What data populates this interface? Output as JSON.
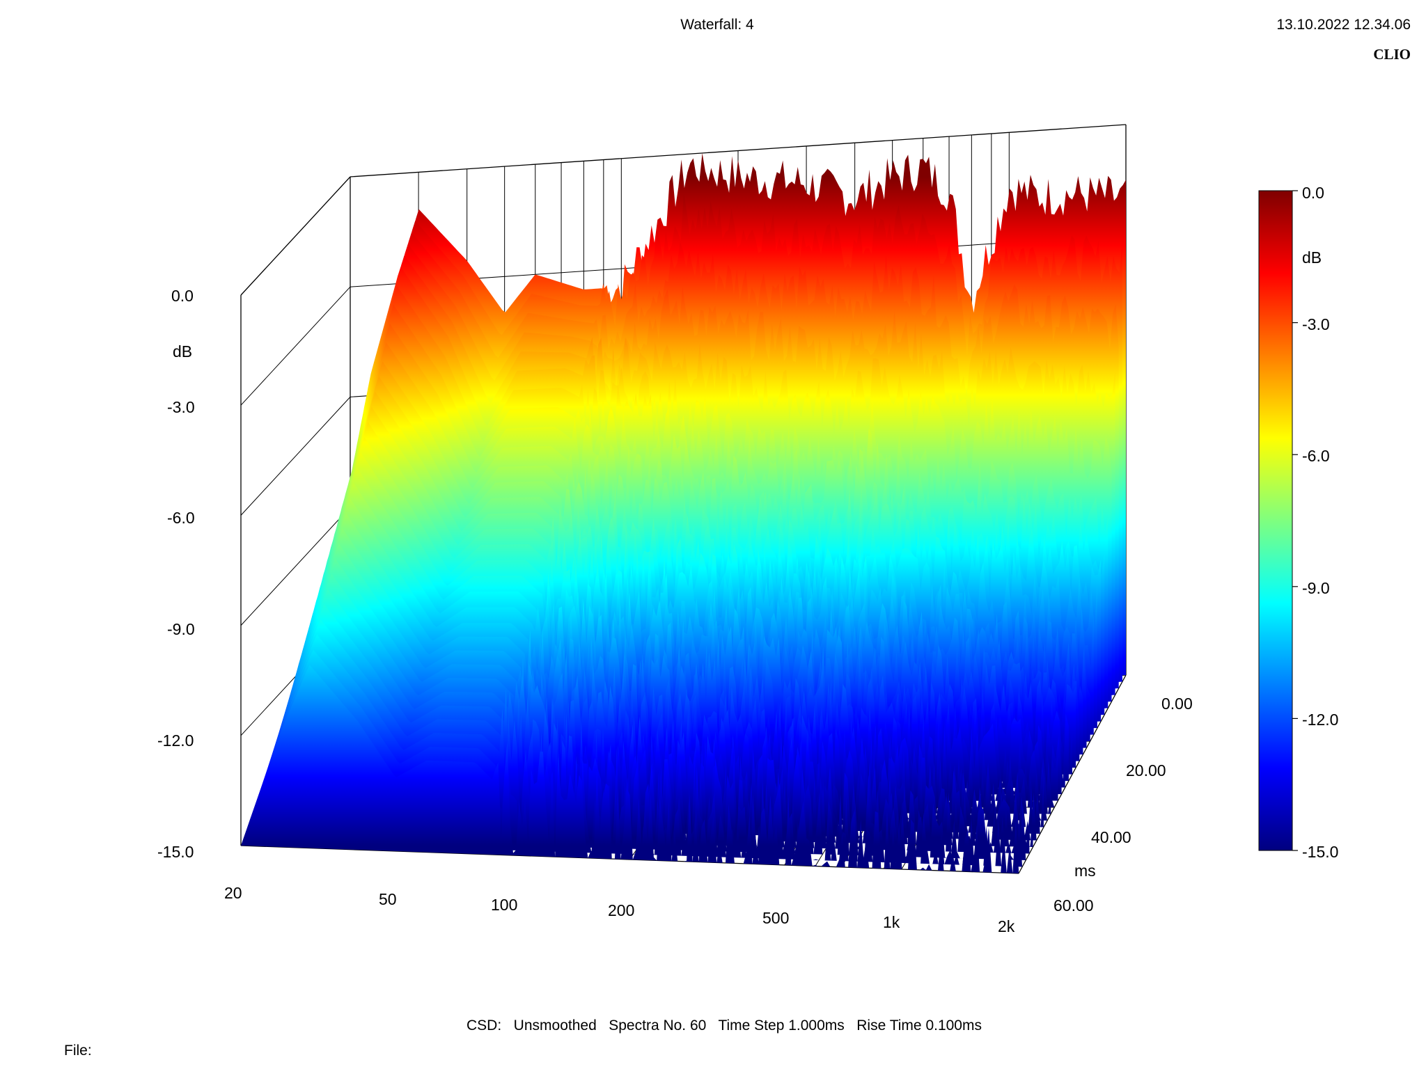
{
  "header": {
    "title": "Waterfall: 4",
    "timestamp": "13.10.2022 12.34.06",
    "brand": "CLIO"
  },
  "footer": {
    "info": "CSD:   Unsmoothed   Spectra No. 60   Time Step 1.000ms   Rise Time 0.100ms",
    "file_label": "File:"
  },
  "colors": {
    "colormap": [
      "#7f0000",
      "#ff0000",
      "#ff7f00",
      "#ffff00",
      "#7fff7f",
      "#00ffff",
      "#007fff",
      "#0000ff",
      "#00007f"
    ]
  },
  "chart_data": {
    "type": "waterfall",
    "title": "Waterfall: 4",
    "z_axis": {
      "label": "dB",
      "range": [
        -15.0,
        0.0
      ],
      "ticks": [
        "0.0",
        "-3.0",
        "-6.0",
        "-9.0",
        "-12.0",
        "-15.0"
      ]
    },
    "x_axis": {
      "label": "",
      "scale": "log",
      "range": [
        20,
        2000
      ],
      "ticks": [
        "20",
        "50",
        "100",
        "200",
        "500",
        "1k",
        "2k"
      ]
    },
    "y_axis": {
      "label": "ms",
      "range": [
        0,
        60
      ],
      "ticks": [
        "0.00",
        "20.00",
        "40.00",
        "60.00"
      ]
    },
    "colorbar": {
      "label": "dB",
      "range": [
        -15.0,
        0.0
      ],
      "ticks": [
        "0.0",
        "-3.0",
        "-6.0",
        "-9.0",
        "-12.0",
        "-15.0"
      ]
    },
    "spectra_count": 60,
    "time_step_ms": 1.0,
    "rise_time_ms": 0.1,
    "series": [
      {
        "time_ms": 0,
        "x": [
          20,
          25,
          30,
          40,
          50,
          60,
          80,
          100,
          150,
          200,
          300,
          400,
          500,
          600,
          700,
          800,
          1000,
          1200,
          1500,
          2000
        ],
        "values": [
          -9.0,
          -4.0,
          -1.0,
          -2.5,
          -4.0,
          -3.0,
          -3.5,
          -3.5,
          -0.3,
          -0.7,
          -1.0,
          -1.5,
          -1.0,
          -0.8,
          -1.5,
          -4.5,
          -1.5,
          -1.8,
          -1.8,
          -2.0
        ]
      },
      {
        "time_ms": 10,
        "x": [
          20,
          25,
          30,
          40,
          50,
          60,
          80,
          100,
          150,
          200,
          300,
          400,
          500,
          600,
          700,
          800,
          1000,
          1200,
          1500,
          2000
        ],
        "values": [
          -11.0,
          -5.0,
          -2.0,
          -4.0,
          -6.5,
          -5.0,
          -5.0,
          -5.5,
          -6.0,
          -7.0,
          -7.5,
          -8.0,
          -7.0,
          -8.0,
          -8.5,
          -9.0,
          -8.5,
          -9.0,
          -9.5,
          -10.0
        ]
      },
      {
        "time_ms": 20,
        "x": [
          20,
          25,
          30,
          40,
          50,
          60,
          80,
          100,
          150,
          200,
          300,
          400,
          500,
          600,
          700,
          800,
          1000,
          1200,
          1500,
          2000
        ],
        "values": [
          -12.5,
          -7.0,
          -4.0,
          -6.0,
          -8.0,
          -7.0,
          -7.0,
          -8.0,
          -9.0,
          -9.5,
          -10.0,
          -10.5,
          -10.0,
          -10.5,
          -11.0,
          -11.5,
          -11.5,
          -12.0,
          -12.5,
          -13.0
        ]
      },
      {
        "time_ms": 40,
        "x": [
          20,
          25,
          30,
          40,
          50,
          60,
          80,
          100,
          150,
          200,
          300,
          400,
          500,
          600,
          700,
          800,
          1000,
          1200,
          1500,
          2000
        ],
        "values": [
          -14.0,
          -9.5,
          -7.0,
          -9.0,
          -10.5,
          -10.0,
          -10.0,
          -11.0,
          -12.0,
          -12.5,
          -13.0,
          -13.5,
          -13.0,
          -13.5,
          -14.0,
          -14.0,
          -14.5,
          -14.5,
          -15.0,
          -15.0
        ]
      },
      {
        "time_ms": 60,
        "x": [
          20,
          25,
          30,
          40,
          50,
          60,
          80,
          100,
          150,
          200,
          300,
          400,
          500,
          600,
          700,
          800,
          1000,
          1200,
          1500,
          2000
        ],
        "values": [
          -15.0,
          -12.0,
          -10.0,
          -11.5,
          -13.0,
          -12.5,
          -12.5,
          -13.5,
          -14.0,
          -14.5,
          -14.5,
          -15.0,
          -14.5,
          -15.0,
          -15.0,
          -15.0,
          -15.0,
          -15.0,
          -15.0,
          -15.0
        ]
      }
    ]
  }
}
